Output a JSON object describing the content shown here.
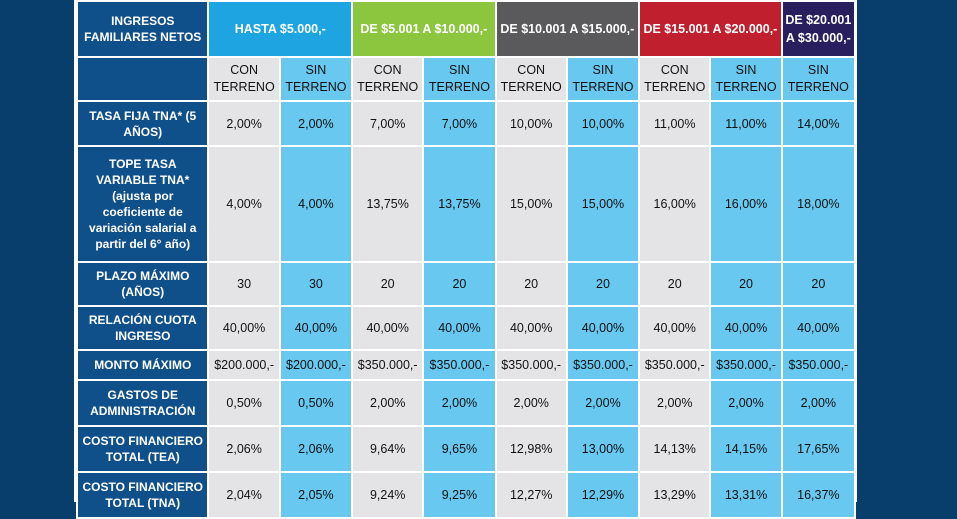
{
  "header_label": "INGRESOS FAMILIARES NETOS",
  "column_groups": [
    {
      "label": "HASTA $5.000,-",
      "color": "#1ea4e0"
    },
    {
      "label": "DE $5.001 A $10.000,-",
      "color": "#8cc63f"
    },
    {
      "label": "DE $10.001 A $15.000,-",
      "color": "#5a5a5c"
    },
    {
      "label": "DE $15.001 A $20.000,-",
      "color": "#c0202e"
    },
    {
      "label": "DE $20.001 A $30.000,-",
      "color": "#2a1f5e"
    }
  ],
  "sub_headers": [
    "CON TERRENO",
    "SIN TERRENO",
    "CON TERRENO",
    "SIN TERRENO",
    "CON TERRENO",
    "SIN TERRENO",
    "CON TERRENO",
    "SIN TERRENO",
    "SIN TERRENO"
  ],
  "rows": [
    {
      "label": "TASA FIJA TNA* (5 AÑOS)",
      "values": [
        "2,00%",
        "2,00%",
        "7,00%",
        "7,00%",
        "10,00%",
        "10,00%",
        "11,00%",
        "11,00%",
        "14,00%"
      ]
    },
    {
      "label": "TOPE TASA VARIABLE TNA* (ajusta por coeficiente de variación salarial a partir del 6° año)",
      "values": [
        "4,00%",
        "4,00%",
        "13,75%",
        "13,75%",
        "15,00%",
        "15,00%",
        "16,00%",
        "16,00%",
        "18,00%"
      ]
    },
    {
      "label": "PLAZO MÁXIMO (AÑOS)",
      "values": [
        "30",
        "30",
        "20",
        "20",
        "20",
        "20",
        "20",
        "20",
        "20"
      ]
    },
    {
      "label": "RELACIÓN CUOTA INGRESO",
      "values": [
        "40,00%",
        "40,00%",
        "40,00%",
        "40,00%",
        "40,00%",
        "40,00%",
        "40,00%",
        "40,00%",
        "40,00%"
      ]
    },
    {
      "label": "MONTO MÁXIMO",
      "values": [
        "$200.000,-",
        "$200.000,-",
        "$350.000,-",
        "$350.000,-",
        "$350.000,-",
        "$350.000,-",
        "$350.000,-",
        "$350.000,-",
        "$350.000,-"
      ]
    },
    {
      "label": "GASTOS DE ADMINISTRACIÓN",
      "values": [
        "0,50%",
        "0,50%",
        "2,00%",
        "2,00%",
        "2,00%",
        "2,00%",
        "2,00%",
        "2,00%",
        "2,00%"
      ]
    },
    {
      "label": "COSTO FINANCIERO TOTAL (TEA)",
      "values": [
        "2,06%",
        "2,06%",
        "9,64%",
        "9,65%",
        "12,98%",
        "13,00%",
        "14,13%",
        "14,15%",
        "17,65%"
      ]
    },
    {
      "label": "COSTO FINANCIERO TOTAL (TNA)",
      "values": [
        "2,04%",
        "2,05%",
        "9,24%",
        "9,25%",
        "12,27%",
        "12,29%",
        "13,29%",
        "13,31%",
        "16,37%"
      ]
    }
  ]
}
